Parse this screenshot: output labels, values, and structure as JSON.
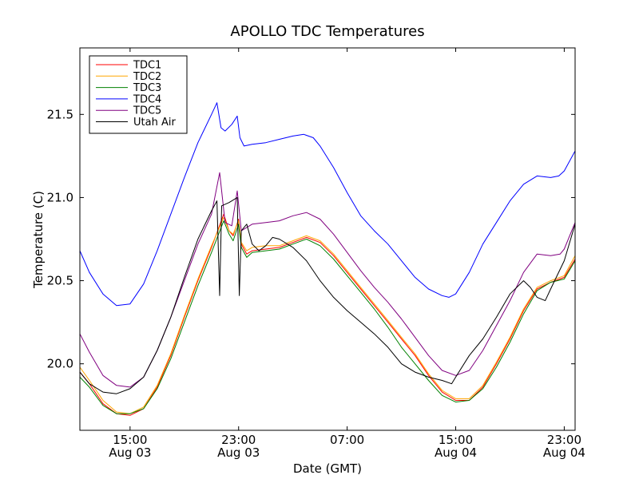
{
  "chart_data": {
    "type": "line",
    "title": "APOLLO TDC Temperatures",
    "xlabel": "Date (GMT)",
    "ylabel": "Temperature (C)",
    "x_unit": "hours since Aug 03 00:00 GMT",
    "xlim": [
      11.3,
      47.8
    ],
    "ylim": [
      19.6,
      21.9
    ],
    "x_ticks": [
      {
        "value": 15,
        "label_time": "15:00",
        "label_date": "Aug 03"
      },
      {
        "value": 23,
        "label_time": "23:00",
        "label_date": "Aug 03"
      },
      {
        "value": 31,
        "label_time": "07:00",
        "label_date": ""
      },
      {
        "value": 39,
        "label_time": "15:00",
        "label_date": "Aug 04"
      },
      {
        "value": 47,
        "label_time": "23:00",
        "label_date": "Aug 04"
      }
    ],
    "y_ticks": [
      {
        "value": 20.0,
        "label": "20.0"
      },
      {
        "value": 20.5,
        "label": "20.5"
      },
      {
        "value": 21.0,
        "label": "21.0"
      },
      {
        "value": 21.5,
        "label": "21.5"
      }
    ],
    "legend_position": "top-left",
    "series": [
      {
        "name": "TDC1",
        "color": "#ff0000",
        "points": [
          [
            11.3,
            19.95
          ],
          [
            12,
            19.88
          ],
          [
            13,
            19.76
          ],
          [
            14,
            19.7
          ],
          [
            15,
            19.69
          ],
          [
            16,
            19.73
          ],
          [
            17,
            19.86
          ],
          [
            18,
            20.05
          ],
          [
            19,
            20.28
          ],
          [
            20,
            20.5
          ],
          [
            21,
            20.7
          ],
          [
            21.9,
            20.9
          ],
          [
            22.3,
            20.8
          ],
          [
            22.6,
            20.77
          ],
          [
            23,
            20.87
          ],
          [
            23.2,
            20.72
          ],
          [
            23.6,
            20.66
          ],
          [
            24,
            20.68
          ],
          [
            25,
            20.69
          ],
          [
            26,
            20.7
          ],
          [
            27,
            20.73
          ],
          [
            28,
            20.76
          ],
          [
            29,
            20.73
          ],
          [
            30,
            20.65
          ],
          [
            31,
            20.55
          ],
          [
            32,
            20.45
          ],
          [
            33,
            20.35
          ],
          [
            34,
            20.25
          ],
          [
            35,
            20.15
          ],
          [
            36,
            20.05
          ],
          [
            37,
            19.93
          ],
          [
            38,
            19.83
          ],
          [
            39,
            19.78
          ],
          [
            40,
            19.78
          ],
          [
            41,
            19.86
          ],
          [
            42,
            20.0
          ],
          [
            43,
            20.15
          ],
          [
            44,
            20.32
          ],
          [
            45,
            20.45
          ],
          [
            46,
            20.49
          ],
          [
            47,
            20.52
          ],
          [
            47.8,
            20.63
          ]
        ]
      },
      {
        "name": "TDC2",
        "color": "#ffa500",
        "points": [
          [
            11.3,
            19.98
          ],
          [
            12,
            19.9
          ],
          [
            13,
            19.78
          ],
          [
            14,
            19.71
          ],
          [
            15,
            19.7
          ],
          [
            16,
            19.74
          ],
          [
            17,
            19.87
          ],
          [
            18,
            20.06
          ],
          [
            19,
            20.29
          ],
          [
            20,
            20.51
          ],
          [
            21,
            20.71
          ],
          [
            21.9,
            20.88
          ],
          [
            22.3,
            20.8
          ],
          [
            22.6,
            20.78
          ],
          [
            23,
            20.86
          ],
          [
            23.2,
            20.73
          ],
          [
            23.6,
            20.68
          ],
          [
            24,
            20.7
          ],
          [
            25,
            20.71
          ],
          [
            26,
            20.71
          ],
          [
            27,
            20.74
          ],
          [
            28,
            20.77
          ],
          [
            29,
            20.74
          ],
          [
            30,
            20.66
          ],
          [
            31,
            20.56
          ],
          [
            32,
            20.46
          ],
          [
            33,
            20.36
          ],
          [
            34,
            20.26
          ],
          [
            35,
            20.16
          ],
          [
            36,
            20.06
          ],
          [
            37,
            19.94
          ],
          [
            38,
            19.84
          ],
          [
            39,
            19.79
          ],
          [
            40,
            19.79
          ],
          [
            41,
            19.87
          ],
          [
            42,
            20.01
          ],
          [
            43,
            20.16
          ],
          [
            44,
            20.33
          ],
          [
            45,
            20.46
          ],
          [
            46,
            20.5
          ],
          [
            47,
            20.53
          ],
          [
            47.8,
            20.65
          ]
        ]
      },
      {
        "name": "TDC3",
        "color": "#008000",
        "points": [
          [
            11.3,
            19.92
          ],
          [
            12,
            19.86
          ],
          [
            13,
            19.75
          ],
          [
            14,
            19.7
          ],
          [
            15,
            19.7
          ],
          [
            16,
            19.73
          ],
          [
            17,
            19.85
          ],
          [
            18,
            20.03
          ],
          [
            19,
            20.25
          ],
          [
            20,
            20.47
          ],
          [
            21,
            20.67
          ],
          [
            21.9,
            20.86
          ],
          [
            22.3,
            20.78
          ],
          [
            22.6,
            20.74
          ],
          [
            23,
            20.84
          ],
          [
            23.2,
            20.7
          ],
          [
            23.6,
            20.64
          ],
          [
            24,
            20.67
          ],
          [
            25,
            20.68
          ],
          [
            26,
            20.69
          ],
          [
            27,
            20.72
          ],
          [
            28,
            20.75
          ],
          [
            29,
            20.71
          ],
          [
            30,
            20.63
          ],
          [
            31,
            20.53
          ],
          [
            32,
            20.43
          ],
          [
            33,
            20.33
          ],
          [
            34,
            20.22
          ],
          [
            35,
            20.1
          ],
          [
            36,
            20.0
          ],
          [
            37,
            19.9
          ],
          [
            38,
            19.81
          ],
          [
            39,
            19.77
          ],
          [
            40,
            19.78
          ],
          [
            41,
            19.85
          ],
          [
            42,
            19.98
          ],
          [
            43,
            20.13
          ],
          [
            44,
            20.3
          ],
          [
            45,
            20.44
          ],
          [
            46,
            20.49
          ],
          [
            47,
            20.51
          ],
          [
            47.8,
            20.62
          ]
        ]
      },
      {
        "name": "TDC4",
        "color": "#0000ff",
        "points": [
          [
            11.3,
            20.68
          ],
          [
            12,
            20.55
          ],
          [
            13,
            20.42
          ],
          [
            14,
            20.35
          ],
          [
            15,
            20.36
          ],
          [
            16,
            20.48
          ],
          [
            17,
            20.68
          ],
          [
            18,
            20.9
          ],
          [
            19,
            21.12
          ],
          [
            20,
            21.33
          ],
          [
            21,
            21.5
          ],
          [
            21.4,
            21.57
          ],
          [
            21.7,
            21.42
          ],
          [
            22,
            21.4
          ],
          [
            22.5,
            21.44
          ],
          [
            22.9,
            21.49
          ],
          [
            23.1,
            21.36
          ],
          [
            23.4,
            21.31
          ],
          [
            24,
            21.32
          ],
          [
            25,
            21.33
          ],
          [
            26,
            21.35
          ],
          [
            27,
            21.37
          ],
          [
            27.8,
            21.38
          ],
          [
            28.5,
            21.36
          ],
          [
            29,
            21.31
          ],
          [
            30,
            21.18
          ],
          [
            31,
            21.03
          ],
          [
            32,
            20.89
          ],
          [
            33,
            20.8
          ],
          [
            34,
            20.72
          ],
          [
            35,
            20.62
          ],
          [
            36,
            20.52
          ],
          [
            37,
            20.45
          ],
          [
            38,
            20.41
          ],
          [
            38.5,
            20.4
          ],
          [
            39,
            20.42
          ],
          [
            40,
            20.55
          ],
          [
            41,
            20.72
          ],
          [
            42,
            20.85
          ],
          [
            43,
            20.98
          ],
          [
            44,
            21.08
          ],
          [
            45,
            21.13
          ],
          [
            46,
            21.12
          ],
          [
            46.6,
            21.13
          ],
          [
            47,
            21.16
          ],
          [
            47.8,
            21.28
          ]
        ]
      },
      {
        "name": "TDC5",
        "color": "#800080",
        "points": [
          [
            11.3,
            20.18
          ],
          [
            12,
            20.07
          ],
          [
            13,
            19.93
          ],
          [
            14,
            19.87
          ],
          [
            15,
            19.86
          ],
          [
            16,
            19.92
          ],
          [
            17,
            20.08
          ],
          [
            18,
            20.28
          ],
          [
            19,
            20.5
          ],
          [
            20,
            20.72
          ],
          [
            21,
            20.9
          ],
          [
            21.6,
            21.15
          ],
          [
            22,
            20.85
          ],
          [
            22.5,
            20.83
          ],
          [
            22.9,
            21.04
          ],
          [
            23.2,
            20.8
          ],
          [
            24,
            20.84
          ],
          [
            25,
            20.85
          ],
          [
            26,
            20.86
          ],
          [
            27,
            20.89
          ],
          [
            28,
            20.91
          ],
          [
            29,
            20.87
          ],
          [
            30,
            20.78
          ],
          [
            31,
            20.67
          ],
          [
            32,
            20.56
          ],
          [
            33,
            20.46
          ],
          [
            34,
            20.37
          ],
          [
            35,
            20.27
          ],
          [
            36,
            20.16
          ],
          [
            37,
            20.05
          ],
          [
            38,
            19.96
          ],
          [
            39,
            19.93
          ],
          [
            40,
            19.96
          ],
          [
            41,
            20.08
          ],
          [
            42,
            20.23
          ],
          [
            43,
            20.38
          ],
          [
            44,
            20.55
          ],
          [
            45,
            20.66
          ],
          [
            46,
            20.65
          ],
          [
            46.7,
            20.66
          ],
          [
            47,
            20.69
          ],
          [
            47.8,
            20.85
          ]
        ]
      },
      {
        "name": "Utah Air",
        "color": "#000000",
        "points": [
          [
            11.3,
            19.95
          ],
          [
            12,
            19.88
          ],
          [
            13,
            19.83
          ],
          [
            14,
            19.82
          ],
          [
            15,
            19.85
          ],
          [
            16,
            19.92
          ],
          [
            17,
            20.08
          ],
          [
            18,
            20.28
          ],
          [
            19,
            20.52
          ],
          [
            20,
            20.75
          ],
          [
            21,
            20.92
          ],
          [
            21.4,
            20.98
          ],
          [
            21.6,
            20.41
          ],
          [
            21.75,
            20.95
          ],
          [
            22.3,
            20.97
          ],
          [
            22.9,
            21.0
          ],
          [
            23.05,
            20.41
          ],
          [
            23.2,
            20.8
          ],
          [
            23.6,
            20.84
          ],
          [
            24,
            20.72
          ],
          [
            24.5,
            20.68
          ],
          [
            25,
            20.71
          ],
          [
            25.5,
            20.76
          ],
          [
            26,
            20.75
          ],
          [
            27,
            20.7
          ],
          [
            28,
            20.62
          ],
          [
            29,
            20.5
          ],
          [
            30,
            20.4
          ],
          [
            31,
            20.32
          ],
          [
            32,
            20.25
          ],
          [
            33,
            20.18
          ],
          [
            34,
            20.1
          ],
          [
            35,
            20.0
          ],
          [
            36,
            19.95
          ],
          [
            37,
            19.92
          ],
          [
            38,
            19.9
          ],
          [
            38.7,
            19.88
          ],
          [
            39,
            19.92
          ],
          [
            40,
            20.05
          ],
          [
            41,
            20.15
          ],
          [
            42,
            20.28
          ],
          [
            43,
            20.42
          ],
          [
            44,
            20.5
          ],
          [
            44.5,
            20.46
          ],
          [
            45,
            20.4
          ],
          [
            45.6,
            20.38
          ],
          [
            46,
            20.45
          ],
          [
            47,
            20.62
          ],
          [
            47.8,
            20.84
          ]
        ]
      }
    ]
  }
}
